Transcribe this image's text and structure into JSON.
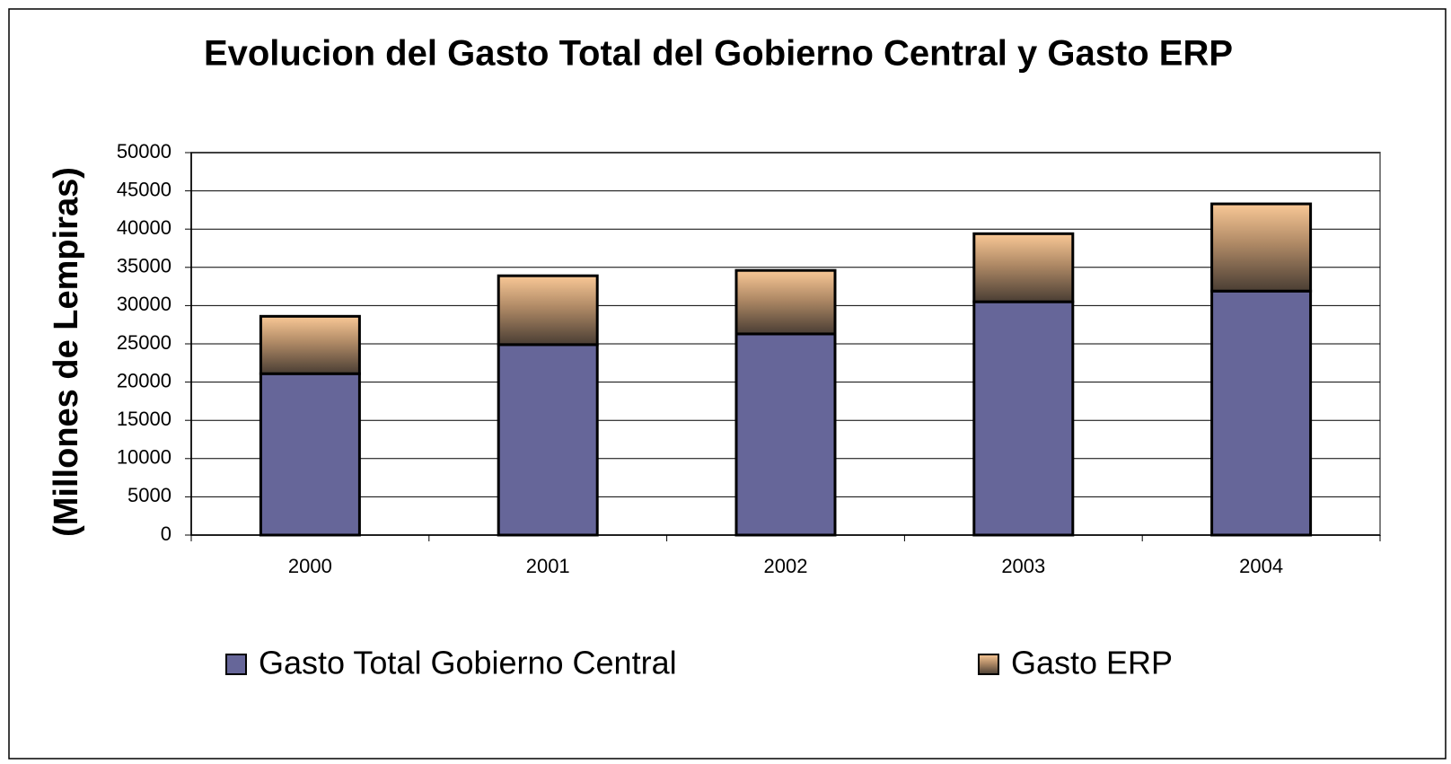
{
  "chart_data": {
    "type": "stacked_bar",
    "title": "Evolucion del Gasto Total del Gobierno Central y Gasto ERP",
    "y_label": "(Millones de Lempiras)",
    "categories": [
      "2000",
      "2001",
      "2002",
      "2003",
      "2004"
    ],
    "series": [
      {
        "name": "Gasto Total Gobierno Central",
        "color": "#666699",
        "values": [
          21100,
          24900,
          26300,
          30500,
          31900
        ]
      },
      {
        "name": "Gasto ERP",
        "color": "#f9c896",
        "values": [
          7500,
          9000,
          8300,
          8900,
          11400
        ]
      }
    ],
    "ylim": [
      0,
      50000
    ],
    "yticks": [
      0,
      5000,
      10000,
      15000,
      20000,
      25000,
      30000,
      35000,
      40000,
      45000,
      50000
    ],
    "grid": true
  }
}
